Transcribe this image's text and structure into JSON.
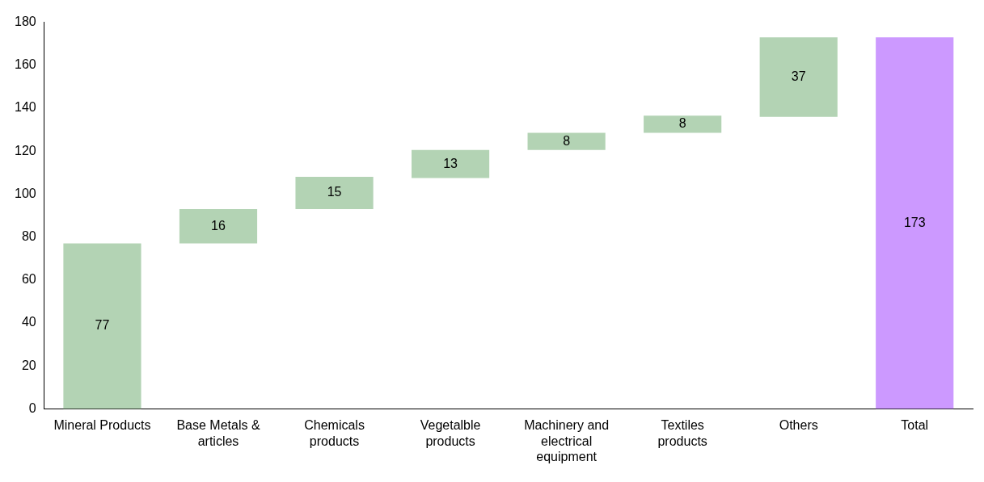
{
  "chart_data": {
    "type": "bar",
    "categories": [
      "Mineral Products",
      "Base Metals & articles",
      "Chemicals products",
      "Vegetalble products",
      "Machinery and electrical equipment",
      "Textiles products",
      "Others",
      "Total"
    ],
    "values": [
      77,
      16,
      15,
      13,
      8,
      8,
      37,
      173
    ],
    "base": [
      0,
      77,
      93,
      107.5,
      120.5,
      128.5,
      136,
      0
    ],
    "colors": [
      "#b3d3b4",
      "#b3d3b4",
      "#b3d3b4",
      "#b3d3b4",
      "#b3d3b4",
      "#b3d3b4",
      "#b3d3b4",
      "#cc99ff"
    ],
    "ylim": [
      0,
      180
    ],
    "yticks": [
      0,
      20,
      40,
      60,
      80,
      100,
      120,
      140,
      160,
      180
    ],
    "grid": false,
    "legend": false,
    "data_labels": true
  }
}
